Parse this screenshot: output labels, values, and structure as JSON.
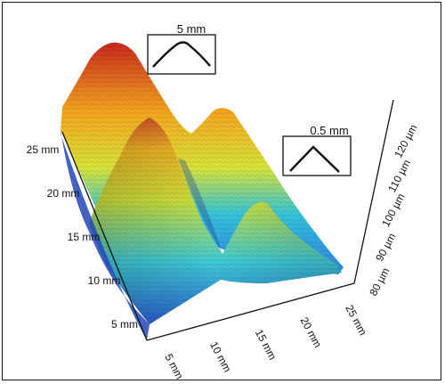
{
  "chart_data": {
    "type": "surface",
    "x_ticks": [
      "5 mm",
      "10 mm",
      "15 mm",
      "20 mm",
      "25 mm"
    ],
    "y_ticks": [
      "5 mm",
      "10 mm",
      "15 mm",
      "20 mm",
      "25 mm"
    ],
    "z_ticks": [
      "80 µm",
      "90 µm",
      "100 µm",
      "110 µm",
      "120 µm"
    ],
    "xlim": [
      0,
      25
    ],
    "ylim": [
      0,
      25
    ],
    "zlim": [
      80,
      125
    ],
    "colormap": "jet",
    "insets": [
      {
        "label": "5 mm",
        "profile": "rounded"
      },
      {
        "label": "0.5 mm",
        "profile": "sharp"
      }
    ]
  },
  "colors": {
    "low": "#1f3fbf",
    "mid_low": "#33c2d9",
    "mid": "#d7e23a",
    "mid_high": "#f2a51d",
    "high": "#c8281e"
  }
}
